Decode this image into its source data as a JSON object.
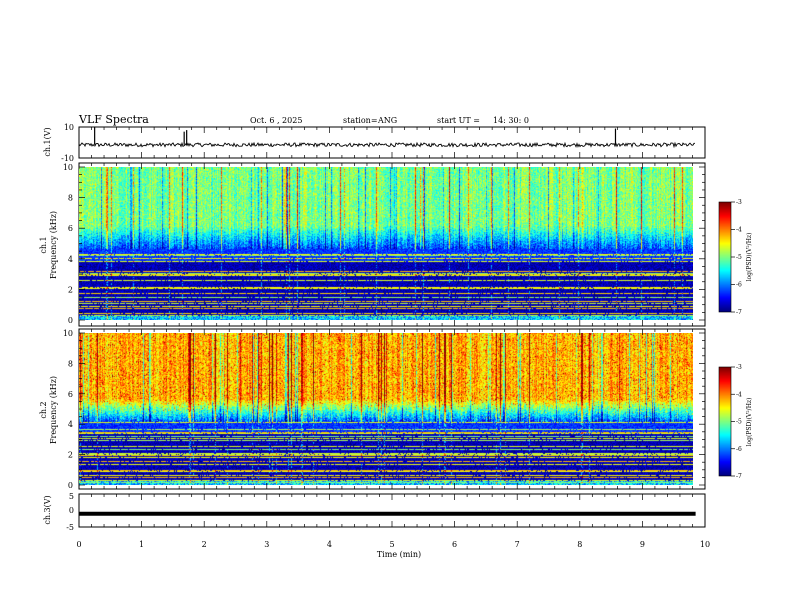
{
  "header": {
    "title": "VLF Spectra",
    "date": "Oct. 6 , 2025",
    "station_label": "station=",
    "station": "ANG",
    "start_label": "start UT =",
    "start_time": "14: 30: 0"
  },
  "chart_data": [
    {
      "type": "line",
      "name": "ch1-waveform",
      "ylabel": "ch.1(V)",
      "ylim": [
        -10,
        10
      ],
      "ytick_labels": [
        "10",
        "-10"
      ],
      "baseline_v": -1.5,
      "noise_amplitude_v": 1.2,
      "spikes": [
        {
          "t_min": 0.25,
          "v": 10
        },
        {
          "t_min": 1.68,
          "v": 7
        },
        {
          "t_min": 1.72,
          "v": 8
        },
        {
          "t_min": 8.57,
          "v": 9
        }
      ]
    },
    {
      "type": "heatmap",
      "name": "ch1-spectrogram",
      "ylabel_line1": "ch.1",
      "ylabel_line2": "Frequency (kHz)",
      "xlim_min": [
        0,
        9.85
      ],
      "ylim_khz": [
        0,
        10
      ],
      "ytick_labels": [
        "0",
        "2",
        "4",
        "6",
        "8",
        "10"
      ],
      "colorbar": {
        "label": "log(PSD)(V²/Hz)",
        "range": [
          -7,
          -3
        ],
        "tick_labels": [
          "-3",
          "-4",
          "-5",
          "-6",
          "-7"
        ]
      },
      "description_profile": {
        "quiet_band_khz": [
          0,
          4.7
        ],
        "hiss_band_khz": [
          4.7,
          10
        ],
        "mean_log_psd_high": -5.0
      }
    },
    {
      "type": "heatmap",
      "name": "ch2-spectrogram",
      "ylabel_line1": "ch.2",
      "ylabel_line2": "Frequency (kHz)",
      "xlim_min": [
        0,
        9.85
      ],
      "ylim_khz": [
        0,
        10
      ],
      "ytick_labels": [
        "0",
        "2",
        "4",
        "6",
        "8",
        "10"
      ],
      "colorbar": {
        "label": "log(PSD)(V²/Hz)",
        "range": [
          -7,
          -3
        ],
        "tick_labels": [
          "-3",
          "-4",
          "-5",
          "-6",
          "-7"
        ]
      },
      "description_profile": {
        "quiet_band_khz": [
          0,
          4.2
        ],
        "hiss_band_khz": [
          4.2,
          10
        ],
        "mean_log_psd_high": -4.2
      }
    },
    {
      "type": "line",
      "name": "ch3-waveform",
      "ylabel": "ch.3(V)",
      "ylim": [
        -5,
        5
      ],
      "ytick_labels": [
        "5",
        "0",
        "-5"
      ],
      "baseline_v": -1.0
    }
  ],
  "x_axis": {
    "label": "Time (min)",
    "range": [
      0,
      10
    ],
    "tick_labels": [
      "0",
      "1",
      "2",
      "3",
      "4",
      "5",
      "6",
      "7",
      "8",
      "9",
      "10"
    ]
  },
  "colors": {
    "trace": "#000000",
    "axis": "#000000",
    "background": "#ffffff"
  }
}
